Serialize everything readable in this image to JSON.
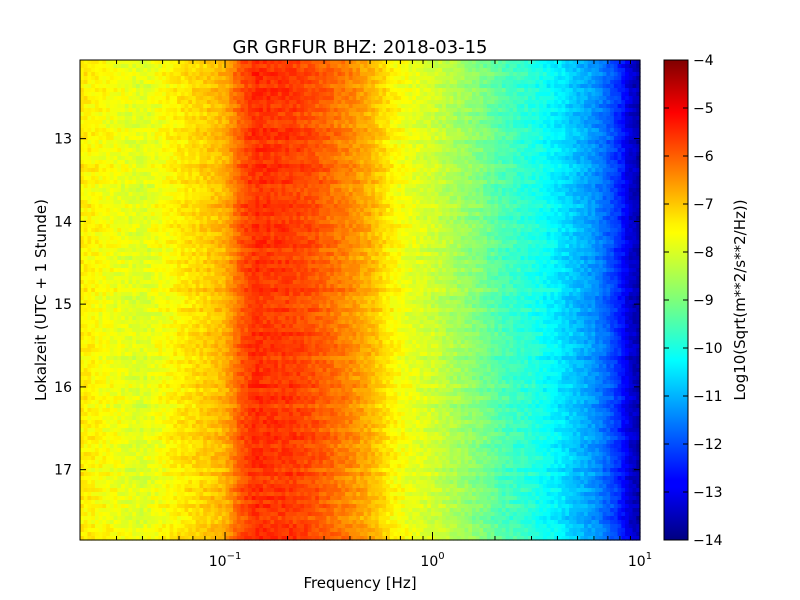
{
  "chart_data": {
    "type": "heatmap",
    "title": "GR GRFUR BHZ: 2018-03-15",
    "xlabel": "Frequency [Hz]",
    "ylabel": "Lokalzeit (UTC + 1 Stunde)",
    "x_scale": "log",
    "xlim": [
      0.02,
      10
    ],
    "x_ticks": [
      {
        "value": 0.1,
        "base": "10",
        "exp": "−1"
      },
      {
        "value": 1,
        "base": "10",
        "exp": "0"
      },
      {
        "value": 10,
        "base": "10",
        "exp": "1"
      }
    ],
    "ylim": [
      12.05,
      17.85
    ],
    "y_ticks": [
      "13",
      "14",
      "15",
      "16",
      "17"
    ],
    "y_inverted": true,
    "colorbar": {
      "label": "Log10(Sqrt(m**2/s**2/Hz))",
      "colormap": "jet",
      "range": [
        -14,
        -4
      ],
      "ticks": [
        "−4",
        "−5",
        "−6",
        "−7",
        "−8",
        "−9",
        "−10",
        "−11",
        "−12",
        "−13",
        "−14"
      ]
    },
    "grid": false,
    "spectrum_profile": {
      "frequencies_hz": [
        0.02,
        0.04,
        0.06,
        0.08,
        0.1,
        0.12,
        0.14,
        0.17,
        0.2,
        0.25,
        0.3,
        0.4,
        0.5,
        0.65,
        0.8,
        1.0,
        1.3,
        1.7,
        2.2,
        3.0,
        4.0,
        5.0,
        6.0,
        7.0,
        8.0,
        9.0,
        10.0
      ],
      "log_amplitude": [
        -7.6,
        -8.1,
        -7.6,
        -7.3,
        -7.0,
        -6.1,
        -5.7,
        -5.8,
        -5.8,
        -6.0,
        -6.2,
        -6.6,
        -7.0,
        -7.7,
        -8.0,
        -8.2,
        -8.6,
        -9.0,
        -9.5,
        -9.9,
        -10.4,
        -10.9,
        -11.3,
        -11.8,
        -12.4,
        -13.2,
        -13.6
      ]
    }
  }
}
